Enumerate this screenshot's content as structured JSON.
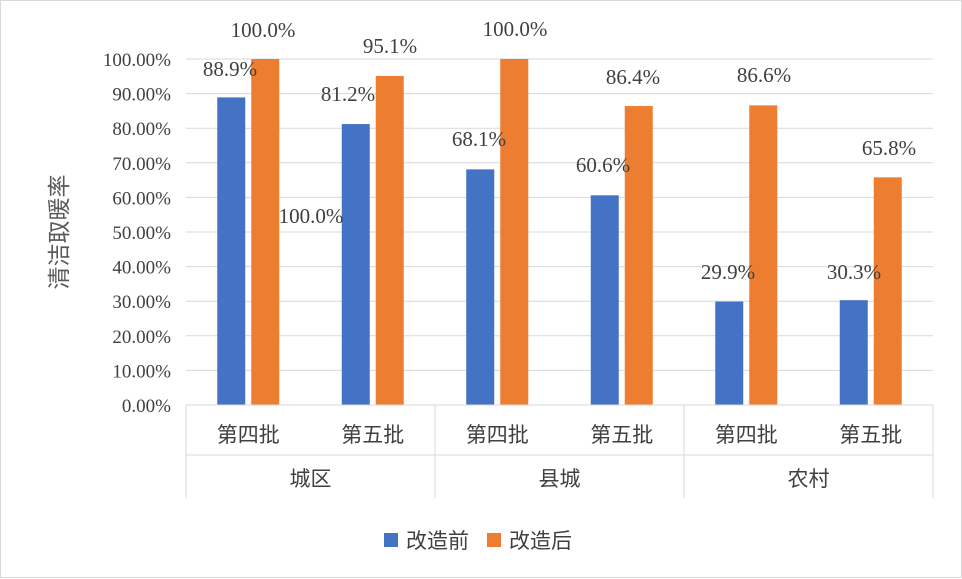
{
  "chart_data": {
    "type": "bar",
    "ylabel": "清洁取暖率",
    "ylim": [
      0,
      100
    ],
    "ytick_step": 10,
    "ytick_labels": [
      "0.00%",
      "10.00%",
      "20.00%",
      "30.00%",
      "40.00%",
      "50.00%",
      "60.00%",
      "70.00%",
      "80.00%",
      "90.00%",
      "100.00%"
    ],
    "grid": true,
    "legend_position": "bottom",
    "groups": [
      {
        "name": "城区",
        "categories": [
          "第四批",
          "第五批"
        ]
      },
      {
        "name": "县城",
        "categories": [
          "第四批",
          "第五批"
        ]
      },
      {
        "name": "农村",
        "categories": [
          "第四批",
          "第五批"
        ]
      }
    ],
    "series": [
      {
        "name": "改造前",
        "color": "#4472C4",
        "values": [
          88.9,
          81.2,
          68.1,
          60.6,
          29.9,
          30.3
        ],
        "labels": [
          "88.9%",
          "81.2%",
          "68.1%",
          "60.6%",
          "29.9%",
          "30.3%"
        ]
      },
      {
        "name": "改造后",
        "color": "#ED7D31",
        "values": [
          100.0,
          95.1,
          100.0,
          86.4,
          86.6,
          65.8
        ],
        "labels": [
          "100.0%",
          "95.1%",
          "100.0%",
          "86.4%",
          "86.6%",
          "65.8%"
        ]
      }
    ],
    "annotations": [
      "100.0%"
    ]
  }
}
